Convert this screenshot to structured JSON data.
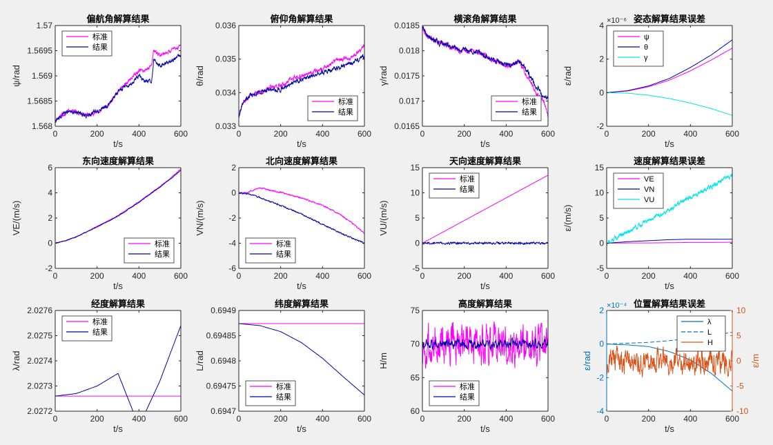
{
  "window": {
    "background": "#f0f0f0"
  },
  "colors": {
    "standard": "#ff00ff",
    "result": "#0000aa",
    "cyan": "#00e5e5",
    "axis_blue": "#0072bd",
    "axis_orange": "#d95319"
  },
  "chart_data": [
    {
      "id": "p11",
      "type": "line",
      "title": "偏航角解算结果",
      "xlabel": "t/s",
      "ylabel": "ψ/rad",
      "xlim": [
        0,
        600
      ],
      "ylim": [
        1.568,
        1.57
      ],
      "xticks": [
        "0",
        "200",
        "400",
        "600"
      ],
      "yticks": [
        "1.568",
        "1.5685",
        "1.569",
        "1.5695",
        "1.57"
      ],
      "legend": "top-left",
      "noise": 3e-05,
      "series": [
        {
          "name": "标准",
          "color": "#ff00ff",
          "x": [
            0,
            30,
            60,
            100,
            150,
            200,
            250,
            300,
            350,
            400,
            430,
            460,
            470,
            500,
            550,
            600
          ],
          "y": [
            1.5681,
            1.5682,
            1.5683,
            1.5683,
            1.5682,
            1.5683,
            1.5684,
            1.5687,
            1.5689,
            1.5691,
            1.5691,
            1.5692,
            1.5695,
            1.5694,
            1.5695,
            1.5696
          ]
        },
        {
          "name": "结果",
          "color": "#0000aa",
          "x": [
            0,
            30,
            60,
            100,
            150,
            200,
            250,
            300,
            350,
            400,
            430,
            460,
            470,
            500,
            550,
            600
          ],
          "y": [
            1.5681,
            1.5682,
            1.5683,
            1.5683,
            1.5682,
            1.5683,
            1.5684,
            1.5687,
            1.5688,
            1.569,
            1.5689,
            1.5689,
            1.5693,
            1.5692,
            1.5693,
            1.5694
          ]
        }
      ]
    },
    {
      "id": "p12",
      "type": "line",
      "title": "俯仰角解算结果",
      "xlabel": "t/s",
      "ylabel": "θ/rad",
      "xlim": [
        0,
        600
      ],
      "ylim": [
        0.033,
        0.036
      ],
      "xticks": [
        "0",
        "200",
        "400",
        "600"
      ],
      "yticks": [
        "0.033",
        "0.034",
        "0.035",
        "0.036"
      ],
      "legend": "bottom-right",
      "noise": 5e-05,
      "series": [
        {
          "name": "标准",
          "color": "#ff00ff",
          "x": [
            0,
            20,
            50,
            100,
            150,
            200,
            250,
            300,
            350,
            400,
            450,
            500,
            550,
            600
          ],
          "y": [
            0.0333,
            0.0337,
            0.0339,
            0.034,
            0.0342,
            0.0342,
            0.0344,
            0.0345,
            0.0346,
            0.0347,
            0.0349,
            0.035,
            0.0351,
            0.0354
          ]
        },
        {
          "name": "结果",
          "color": "#0000aa",
          "x": [
            0,
            20,
            50,
            100,
            150,
            200,
            250,
            300,
            350,
            400,
            450,
            500,
            550,
            600
          ],
          "y": [
            0.0333,
            0.0337,
            0.0339,
            0.034,
            0.0341,
            0.0341,
            0.0343,
            0.0344,
            0.0345,
            0.0346,
            0.0347,
            0.0348,
            0.0349,
            0.0351
          ]
        }
      ]
    },
    {
      "id": "p13",
      "type": "line",
      "title": "横滚角解算结果",
      "xlabel": "t/s",
      "ylabel": "γ/rad",
      "xlim": [
        0,
        600
      ],
      "ylim": [
        0.0165,
        0.0185
      ],
      "xticks": [
        "0",
        "200",
        "400",
        "600"
      ],
      "yticks": [
        "0.0165",
        "0.017",
        "0.0175",
        "0.018",
        "0.0185"
      ],
      "legend": "bottom-right",
      "noise": 4e-05,
      "series": [
        {
          "name": "标准",
          "color": "#ff00ff",
          "x": [
            0,
            20,
            60,
            120,
            180,
            240,
            300,
            330,
            360,
            420,
            460,
            500,
            540,
            580,
            600
          ],
          "y": [
            0.0185,
            0.0183,
            0.0182,
            0.0181,
            0.018,
            0.018,
            0.0179,
            0.0178,
            0.0178,
            0.0177,
            0.0178,
            0.0175,
            0.0172,
            0.017,
            0.0167
          ]
        },
        {
          "name": "结果",
          "color": "#0000aa",
          "x": [
            0,
            20,
            60,
            120,
            180,
            240,
            300,
            330,
            360,
            420,
            460,
            500,
            540,
            580,
            600
          ],
          "y": [
            0.0185,
            0.0183,
            0.0182,
            0.0181,
            0.018,
            0.018,
            0.0179,
            0.0178,
            0.0178,
            0.0177,
            0.0178,
            0.0176,
            0.0173,
            0.0171,
            0.0171
          ]
        }
      ]
    },
    {
      "id": "p14",
      "type": "line",
      "title": "姿态解算结果误差",
      "exponent": "×10⁻⁶",
      "xlabel": "t/s",
      "ylabel": "ε/rad",
      "xlim": [
        0,
        600
      ],
      "ylim": [
        -2,
        4
      ],
      "xticks": [
        "0",
        "200",
        "400",
        "600"
      ],
      "yticks": [
        "-2",
        "0",
        "2",
        "4"
      ],
      "legend": "top-left",
      "noise": 0,
      "series": [
        {
          "name": "ψ",
          "color": "#ff00ff",
          "x": [
            0,
            100,
            200,
            300,
            400,
            500,
            600
          ],
          "y": [
            0,
            0.1,
            0.35,
            0.75,
            1.3,
            1.95,
            2.65
          ]
        },
        {
          "name": "θ",
          "color": "#0000aa",
          "x": [
            0,
            100,
            200,
            300,
            400,
            500,
            600
          ],
          "y": [
            0,
            0.12,
            0.4,
            0.85,
            1.5,
            2.25,
            3.15
          ]
        },
        {
          "name": "γ",
          "color": "#00e5e5",
          "x": [
            0,
            100,
            200,
            300,
            400,
            500,
            600
          ],
          "y": [
            0,
            -0.03,
            -0.15,
            -0.35,
            -0.62,
            -0.95,
            -1.35
          ]
        }
      ]
    },
    {
      "id": "p21",
      "type": "line",
      "title": "东向速度解算结果",
      "xlabel": "t/s",
      "ylabel": "VE/(m/s)",
      "xlim": [
        0,
        600
      ],
      "ylim": [
        -2,
        6
      ],
      "xticks": [
        "0",
        "200",
        "400",
        "600"
      ],
      "yticks": [
        "-2",
        "0",
        "2",
        "4",
        "6"
      ],
      "legend": "bottom-right",
      "noise": 0.02,
      "series": [
        {
          "name": "标准",
          "color": "#ff00ff",
          "x": [
            0,
            50,
            100,
            150,
            200,
            250,
            300,
            350,
            400,
            450,
            500,
            550,
            600
          ],
          "y": [
            0,
            0.2,
            0.5,
            0.9,
            1.35,
            1.75,
            2.2,
            2.75,
            3.3,
            3.9,
            4.5,
            5.15,
            5.9
          ]
        },
        {
          "name": "结果",
          "color": "#0000aa",
          "x": [
            0,
            50,
            100,
            150,
            200,
            250,
            300,
            350,
            400,
            450,
            500,
            550,
            600
          ],
          "y": [
            0,
            0.2,
            0.5,
            0.9,
            1.3,
            1.7,
            2.15,
            2.7,
            3.25,
            3.85,
            4.45,
            5.1,
            5.8
          ]
        }
      ]
    },
    {
      "id": "p22",
      "type": "line",
      "title": "北向速度解算结果",
      "xlabel": "t/s",
      "ylabel": "VN/(m/s)",
      "xlim": [
        0,
        600
      ],
      "ylim": [
        -6,
        2
      ],
      "xticks": [
        "0",
        "200",
        "400",
        "600"
      ],
      "yticks": [
        "-6",
        "-4",
        "-2",
        "0",
        "2"
      ],
      "legend": "bottom-left",
      "noise": 0.04,
      "series": [
        {
          "name": "标准",
          "color": "#ff00ff",
          "x": [
            0,
            40,
            80,
            100,
            150,
            200,
            250,
            300,
            350,
            400,
            450,
            500,
            550,
            600
          ],
          "y": [
            0,
            0,
            0.3,
            0.4,
            0.2,
            0.05,
            -0.2,
            -0.4,
            -0.7,
            -1.0,
            -1.4,
            -1.9,
            -2.5,
            -3.2
          ]
        },
        {
          "name": "结果",
          "color": "#0000aa",
          "x": [
            0,
            50,
            100,
            150,
            200,
            250,
            300,
            350,
            400,
            450,
            500,
            550,
            600
          ],
          "y": [
            0,
            -0.1,
            -0.35,
            -0.7,
            -1.0,
            -1.35,
            -1.7,
            -2.1,
            -2.5,
            -2.9,
            -3.3,
            -3.65,
            -4.0
          ]
        }
      ]
    },
    {
      "id": "p23",
      "type": "line",
      "title": "天向速度解算结果",
      "xlabel": "t/s",
      "ylabel": "VU/(m/s)",
      "xlim": [
        0,
        600
      ],
      "ylim": [
        -5,
        15
      ],
      "xticks": [
        "0",
        "200",
        "400",
        "600"
      ],
      "yticks": [
        "-5",
        "0",
        "5",
        "10",
        "15"
      ],
      "legend": "top-left",
      "noise": 0,
      "series": [
        {
          "name": "标准",
          "color": "#ff00ff",
          "x": [
            0,
            600
          ],
          "y": [
            0,
            13.5
          ]
        },
        {
          "name": "结果",
          "color": "#0000aa",
          "x": [
            0,
            600
          ],
          "y": [
            0,
            0
          ],
          "noise": 0.15
        }
      ]
    },
    {
      "id": "p24",
      "type": "line",
      "title": "速度解算结果误差",
      "xlabel": "t/s",
      "ylabel": "ε/(m/s)",
      "xlim": [
        0,
        600
      ],
      "ylim": [
        -5,
        15
      ],
      "xticks": [
        "0",
        "200",
        "400",
        "600"
      ],
      "yticks": [
        "-5",
        "0",
        "5",
        "10",
        "15"
      ],
      "legend": "top-left",
      "noise": 0,
      "series": [
        {
          "name": "VE",
          "color": "#ff00ff",
          "x": [
            0,
            100,
            200,
            300,
            400,
            500,
            600
          ],
          "y": [
            0,
            0.05,
            0.05,
            0.1,
            0.15,
            0.15,
            0.2
          ]
        },
        {
          "name": "VN",
          "color": "#0000aa",
          "x": [
            0,
            100,
            200,
            300,
            400,
            500,
            600
          ],
          "y": [
            0,
            0.3,
            0.5,
            0.7,
            0.8,
            0.8,
            0.8
          ]
        },
        {
          "name": "VU",
          "color": "#00e5e5",
          "x": [
            0,
            600
          ],
          "y": [
            0,
            13.5
          ],
          "noise": 0.35
        }
      ]
    },
    {
      "id": "p31",
      "type": "line",
      "title": "经度解算结果",
      "xlabel": "t/s",
      "ylabel": "λ/rad",
      "xlim": [
        0,
        600
      ],
      "ylim": [
        2.0272,
        2.0276
      ],
      "xticks": [
        "0",
        "200",
        "400",
        "600"
      ],
      "yticks": [
        "2.0272",
        "2.0273",
        "2.0274",
        "2.0275",
        "2.0276"
      ],
      "legend": "top-left",
      "noise": 0,
      "series": [
        {
          "name": "标准",
          "color": "#ff00ff",
          "x": [
            0,
            600
          ],
          "y": [
            2.02726,
            2.02726
          ]
        },
        {
          "name": "结果",
          "color": "#0000aa",
          "x": [
            0,
            100,
            200,
            300,
            400,
            500,
            600
          ],
          "y": [
            2.02726,
            2.02727,
            2.0273,
            2.02735,
            2.02714,
            2.02732,
            2.02754
          ]
        }
      ]
    },
    {
      "id": "p32",
      "type": "line",
      "title": "纬度解算结果",
      "xlabel": "t/s",
      "ylabel": "L/rad",
      "xlim": [
        0,
        600
      ],
      "ylim": [
        0.6947,
        0.6949
      ],
      "xticks": [
        "0",
        "200",
        "400",
        "600"
      ],
      "yticks": [
        "0.6947",
        "0.69475",
        "0.6948",
        "0.69485",
        "0.6949"
      ],
      "legend": "bottom-left",
      "noise": 0,
      "series": [
        {
          "name": "标准",
          "color": "#ff00ff",
          "x": [
            0,
            600
          ],
          "y": [
            0.694874,
            0.694874
          ]
        },
        {
          "name": "结果",
          "color": "#0000aa",
          "x": [
            0,
            100,
            200,
            300,
            400,
            500,
            600
          ],
          "y": [
            0.694874,
            0.69487,
            0.694858,
            0.694836,
            0.694805,
            0.694768,
            0.694732
          ]
        }
      ]
    },
    {
      "id": "p33",
      "type": "line",
      "title": "高度解算结果",
      "xlabel": "t/s",
      "ylabel": "H/m",
      "xlim": [
        0,
        600
      ],
      "ylim": [
        60,
        75
      ],
      "xticks": [
        "0",
        "200",
        "400",
        "600"
      ],
      "yticks": [
        "60",
        "65",
        "70",
        "75"
      ],
      "legend": "bottom-left",
      "noise": 0,
      "series": [
        {
          "name": "标准",
          "color": "#ff00ff",
          "x": [
            0,
            600
          ],
          "y": [
            70,
            70
          ],
          "noise": 2.2
        },
        {
          "name": "结果",
          "color": "#0000aa",
          "x": [
            0,
            600
          ],
          "y": [
            70,
            70
          ],
          "noise": 0.45
        }
      ]
    },
    {
      "id": "p34",
      "type": "line",
      "title": "位置解算结果误差",
      "exponent": "×10⁻⁴",
      "xlabel": "t/s",
      "ylabel": "ε/rad",
      "ylabel_right": "ε/m",
      "xlim": [
        0,
        600
      ],
      "ylim": [
        -4,
        2
      ],
      "ylim_right": [
        -10,
        10
      ],
      "xticks": [
        "0",
        "200",
        "400",
        "600"
      ],
      "yticks": [
        "-4",
        "-2",
        "0",
        "2"
      ],
      "yticks_right": [
        "-10",
        "-5",
        "0",
        "5",
        "10"
      ],
      "legend": "top-right",
      "noise": 0,
      "series": [
        {
          "name": "λ",
          "color": "#0072bd",
          "axis": "left",
          "x": [
            0,
            100,
            200,
            300,
            400,
            500,
            600
          ],
          "y": [
            0,
            -0.05,
            -0.15,
            -0.45,
            -0.95,
            -1.75,
            -2.8
          ]
        },
        {
          "name": "L",
          "color": "#0072bd",
          "axis": "left",
          "dash": "6,3",
          "x": [
            0,
            100,
            200,
            300,
            400,
            500,
            600
          ],
          "y": [
            0,
            0.05,
            0.1,
            0.2,
            0.35,
            0.5,
            0.7
          ]
        },
        {
          "name": "H",
          "color": "#d95319",
          "axis": "right",
          "x": [
            0,
            600
          ],
          "y": [
            0,
            0
          ],
          "noise": 1.8
        }
      ]
    }
  ]
}
